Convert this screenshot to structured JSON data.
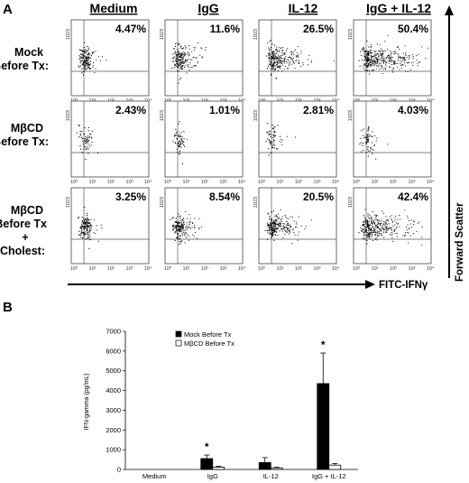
{
  "panel_a": {
    "letter": "A",
    "columns": [
      "Medium",
      "IgG",
      "IL-12",
      "IgG + IL-12"
    ],
    "rows": [
      {
        "lines": [
          "Mock",
          "Before Tx:"
        ]
      },
      {
        "lines": [
          "MβCD",
          "Before Tx:"
        ]
      },
      {
        "lines": [
          "MβCD",
          "Before Tx",
          "+",
          "Cholest:"
        ]
      }
    ],
    "x_axis_title": "FITC-IFNγ",
    "y_axis_title": "Forward Scatter",
    "x_ticks": [
      "10⁰",
      "10¹",
      "10²",
      "10³",
      "10⁴"
    ],
    "y_tick_top": "1023",
    "colors": {
      "ink": "#000000",
      "frame": "#333333"
    }
  },
  "panel_b": {
    "letter": "B",
    "colors": {
      "mock": "#000000",
      "mbcd": "#ffffff",
      "edge": "#000000"
    }
  },
  "chart_data": [
    {
      "type": "scatter",
      "layout": "3x4 grid of flow cytometry dot plots",
      "xscale": "log",
      "x_label": "FITC-IFNγ",
      "y_label": "Forward Scatter",
      "xlim": [
        "10⁰",
        "10⁴"
      ],
      "ylim": [
        0,
        1023
      ],
      "column_labels": [
        "Medium",
        "IgG",
        "IL-12",
        "IgG + IL-12"
      ],
      "row_labels": [
        "Mock Before Tx:",
        "MβCD Before Tx:",
        "MβCD Before Tx + Cholest:"
      ],
      "percent_positive": [
        [
          "4.47%",
          "11.6%",
          "26.5%",
          "50.4%"
        ],
        [
          "2.43%",
          "1.01%",
          "2.81%",
          "4.03%"
        ],
        [
          "3.25%",
          "8.54%",
          "20.5%",
          "42.4%"
        ]
      ]
    },
    {
      "type": "bar",
      "categories": [
        "Medium",
        "IgG",
        "IL-12",
        "IgG + IL-12"
      ],
      "series": [
        {
          "name": "Mock Before Tx",
          "values": [
            0,
            550,
            350,
            4350
          ],
          "errors": [
            0,
            180,
            250,
            1550
          ]
        },
        {
          "name": "MβCD Before Tx",
          "values": [
            0,
            120,
            80,
            220
          ],
          "errors": [
            0,
            40,
            30,
            80
          ]
        }
      ],
      "ylabel": "IFN-gamma (pg/mL)",
      "ylim": [
        0,
        7000
      ],
      "yticks": [
        0,
        1000,
        2000,
        3000,
        4000,
        5000,
        6000,
        7000
      ],
      "significance": [
        {
          "category": "IgG",
          "mark": "*"
        },
        {
          "category": "IgG + IL-12",
          "mark": "*"
        }
      ],
      "legend": "top-left"
    }
  ]
}
